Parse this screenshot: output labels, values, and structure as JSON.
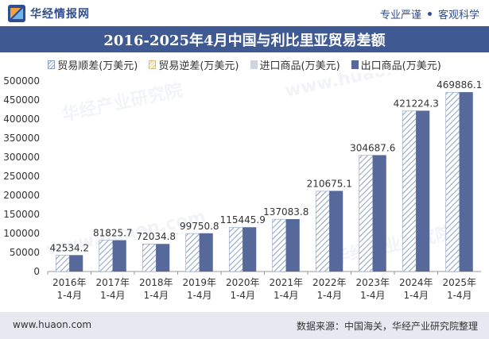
{
  "header": {
    "brand": "华经情报网",
    "tagline_left": "专业严谨",
    "tagline_right": "客观科学"
  },
  "footer": {
    "website": "www.huaon.com",
    "source": "数据来源：中国海关，华经产业研究院整理"
  },
  "watermarks": [
    "华经产业研究院",
    "www.huaon.com"
  ],
  "colors": {
    "title_bg": "#3f5a92",
    "export_bar": "#56699a",
    "import_bar": "#cfd5e0",
    "surplus_hatch": "#8aa0c4",
    "deficit_hatch": "#e0c070",
    "footer_bg": "#e6e9f0"
  },
  "chart_data": {
    "type": "bar",
    "title": "2016-2025年4月中国与利比里亚贸易差额",
    "categories": [
      "2016年\n1-4月",
      "2017年\n1-4月",
      "2018年\n1-4月",
      "2019年\n1-4月",
      "2020年\n1-4月",
      "2021年\n1-4月",
      "2022年\n1-4月",
      "2023年\n1-4月",
      "2024年\n1-4月",
      "2025年\n1-4月"
    ],
    "series": [
      {
        "name": "贸易顺差(万美元)",
        "values": [
          42534.2,
          81825.7,
          72034.8,
          99750.8,
          115445.9,
          137083.8,
          210675.1,
          304687.6,
          421224.3,
          469886.1
        ]
      },
      {
        "name": "贸易逆差(万美元)",
        "values": [
          null,
          null,
          null,
          null,
          null,
          null,
          null,
          null,
          null,
          null
        ]
      },
      {
        "name": "进口商品(万美元)",
        "values": [
          null,
          null,
          null,
          null,
          null,
          null,
          null,
          null,
          null,
          null
        ]
      },
      {
        "name": "出口商品(万美元)",
        "values": [
          43100,
          82200,
          72400,
          100400,
          116200,
          137500,
          211600,
          305400,
          422000,
          470700
        ]
      }
    ],
    "data_labels": [
      "42534.2",
      "81825.7",
      "72034.8",
      "99750.8",
      "115445.9",
      "137083.8",
      "210675.1",
      "304687.6",
      "421224.3",
      "469886.1"
    ],
    "yticks": [
      "0",
      "50000",
      "100000",
      "150000",
      "200000",
      "250000",
      "300000",
      "350000",
      "400000",
      "450000",
      "500000"
    ],
    "ylim": [
      0,
      500000
    ],
    "grid": false,
    "legend": "top"
  }
}
